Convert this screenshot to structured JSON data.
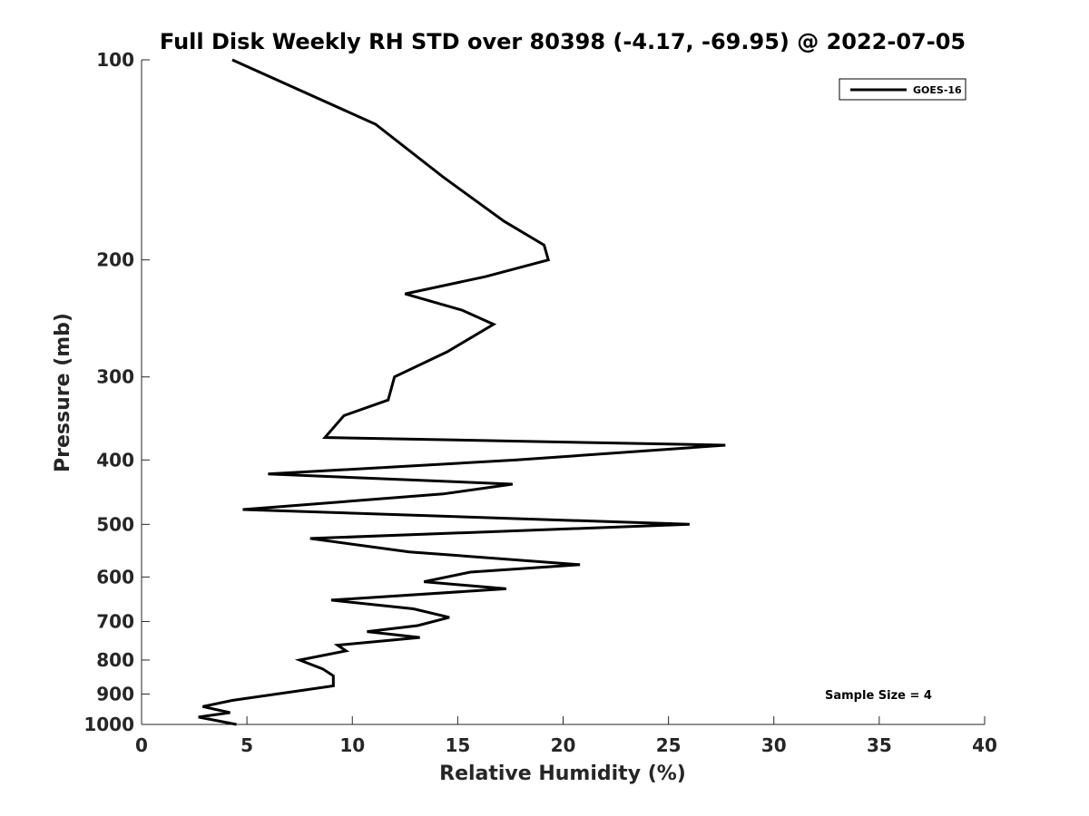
{
  "chart_data": {
    "type": "line",
    "title": "Full Disk Weekly RH STD over 80398 (-4.17, -69.95) @ 2022-07-05",
    "xlabel": "Relative Humidity (%)",
    "ylabel": "Pressure (mb)",
    "xlim": [
      0,
      40
    ],
    "ylim": [
      100,
      1000
    ],
    "yscale": "log",
    "yreversed": true,
    "xticks": [
      "0",
      "5",
      "10",
      "15",
      "20",
      "25",
      "30",
      "35",
      "40"
    ],
    "yticks": [
      "100",
      "200",
      "300",
      "400",
      "500",
      "600",
      "700",
      "800",
      "900",
      "1000"
    ],
    "annotation": "Sample Size = 4",
    "legend": {
      "position": "top-right",
      "entries": [
        "GOES-16"
      ]
    },
    "series": [
      {
        "name": "GOES-16",
        "color": "#000000",
        "points": [
          [
            4.3,
            100
          ],
          [
            11.1,
            125
          ],
          [
            14.3,
            150
          ],
          [
            17.2,
            175
          ],
          [
            19.1,
            190
          ],
          [
            19.3,
            200
          ],
          [
            16.3,
            212
          ],
          [
            12.5,
            225
          ],
          [
            15.2,
            238
          ],
          [
            16.7,
            250
          ],
          [
            14.5,
            275
          ],
          [
            12.0,
            300
          ],
          [
            11.7,
            325
          ],
          [
            9.6,
            343
          ],
          [
            8.7,
            370
          ],
          [
            27.7,
            380
          ],
          [
            17.8,
            400
          ],
          [
            6.0,
            420
          ],
          [
            17.6,
            435
          ],
          [
            14.3,
            450
          ],
          [
            4.8,
            475
          ],
          [
            26.0,
            500
          ],
          [
            8.0,
            525
          ],
          [
            12.7,
            550
          ],
          [
            20.8,
            575
          ],
          [
            15.6,
            590
          ],
          [
            13.4,
            610
          ],
          [
            17.3,
            625
          ],
          [
            9.0,
            650
          ],
          [
            12.9,
            670
          ],
          [
            14.6,
            690
          ],
          [
            13.1,
            710
          ],
          [
            10.7,
            725
          ],
          [
            13.2,
            740
          ],
          [
            9.3,
            760
          ],
          [
            9.7,
            775
          ],
          [
            7.5,
            800
          ],
          [
            8.6,
            825
          ],
          [
            9.1,
            845
          ],
          [
            9.1,
            875
          ],
          [
            4.3,
            920
          ],
          [
            2.9,
            940
          ],
          [
            4.2,
            960
          ],
          [
            2.7,
            975
          ],
          [
            4.5,
            1000
          ]
        ]
      }
    ]
  }
}
